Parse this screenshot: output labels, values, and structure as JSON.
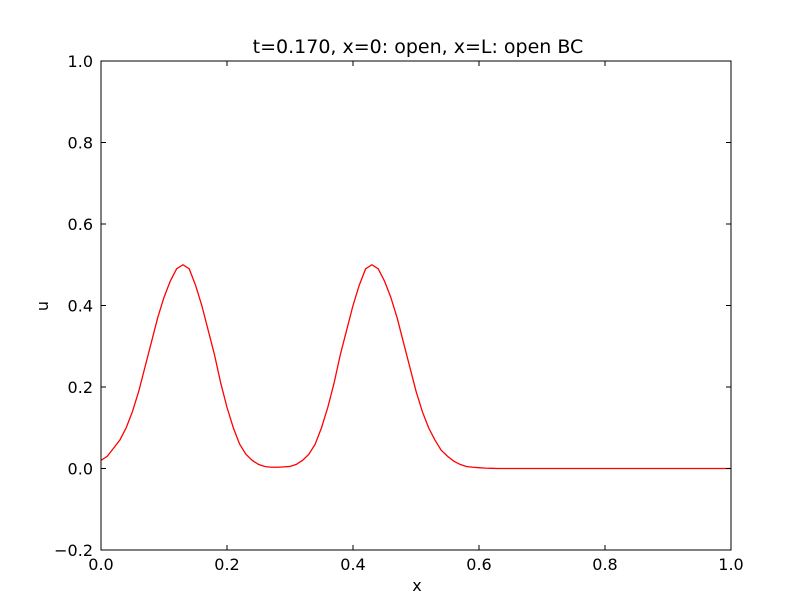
{
  "chart_data": {
    "type": "line",
    "title": "t=0.170, x=0: open, x=L: open BC",
    "xlabel": "x",
    "ylabel": "u",
    "xlim": [
      0.0,
      1.0
    ],
    "ylim": [
      -0.2,
      1.0
    ],
    "xticks": [
      "0.0",
      "0.2",
      "0.4",
      "0.6",
      "0.8",
      "1.0"
    ],
    "yticks": [
      "−0.2",
      "0.0",
      "0.2",
      "0.4",
      "0.6",
      "0.8",
      "1.0"
    ],
    "grid": false,
    "series": [
      {
        "color": "#ff0000",
        "x": [
          0.0,
          0.01,
          0.02,
          0.03,
          0.04,
          0.05,
          0.06,
          0.07,
          0.08,
          0.09,
          0.1,
          0.11,
          0.12,
          0.13,
          0.14,
          0.15,
          0.16,
          0.17,
          0.18,
          0.19,
          0.2,
          0.21,
          0.22,
          0.23,
          0.24,
          0.25,
          0.26,
          0.27,
          0.28,
          0.29,
          0.3,
          0.31,
          0.32,
          0.33,
          0.34,
          0.35,
          0.36,
          0.37,
          0.38,
          0.39,
          0.4,
          0.41,
          0.42,
          0.43,
          0.44,
          0.45,
          0.46,
          0.47,
          0.48,
          0.49,
          0.5,
          0.51,
          0.52,
          0.53,
          0.54,
          0.55,
          0.56,
          0.57,
          0.58,
          0.59,
          0.6,
          0.61,
          0.62,
          0.63,
          0.64,
          0.65,
          0.66,
          0.68,
          0.7,
          0.75,
          0.8,
          0.85,
          0.9,
          0.95,
          1.0
        ],
        "y": [
          0.02,
          0.03,
          0.05,
          0.07,
          0.1,
          0.14,
          0.19,
          0.25,
          0.31,
          0.37,
          0.42,
          0.46,
          0.49,
          0.5,
          0.49,
          0.45,
          0.4,
          0.34,
          0.28,
          0.21,
          0.15,
          0.1,
          0.06,
          0.035,
          0.02,
          0.01,
          0.005,
          0.003,
          0.003,
          0.004,
          0.005,
          0.01,
          0.02,
          0.035,
          0.06,
          0.1,
          0.15,
          0.21,
          0.28,
          0.34,
          0.4,
          0.45,
          0.49,
          0.5,
          0.49,
          0.46,
          0.42,
          0.37,
          0.31,
          0.25,
          0.19,
          0.14,
          0.1,
          0.07,
          0.045,
          0.03,
          0.018,
          0.01,
          0.005,
          0.003,
          0.002,
          0.001,
          0.0005,
          0.0,
          0.0,
          0.0,
          0.0,
          0.0,
          0.0,
          0.0,
          0.0,
          0.0,
          0.0,
          0.0,
          0.0
        ]
      }
    ]
  }
}
